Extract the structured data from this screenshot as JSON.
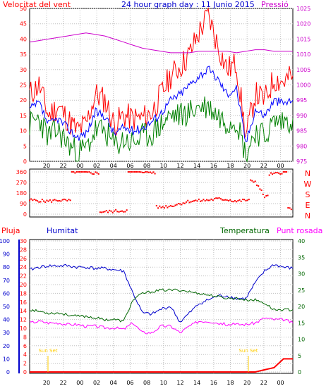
{
  "colors": {
    "wind": "#ff0000",
    "gust": "#008000",
    "pressure_line": "#cc00cc",
    "pressure_axis": "#cc00cc",
    "title": "#0000cc",
    "humidity": "#0000cc",
    "temperature": "#006600",
    "dew": "#ff00ff",
    "rain": "#ff0000",
    "sunset": "#ffcc00",
    "grid": "#c0c0c0",
    "wind_trend": "#0000ff",
    "axis_text": "#000000"
  },
  "chart_data": [
    {
      "type": "line",
      "panel": "wind",
      "title": "24 hour graph day : 11 Junio 2015",
      "left_axis_label": "Velocitat del vent",
      "right_axis_label": "Pressió",
      "ylim": [
        0,
        50
      ],
      "y_ticks": [
        0,
        5,
        10,
        15,
        20,
        25,
        30,
        35,
        40,
        45,
        50
      ],
      "y2lim": [
        975,
        1025
      ],
      "y2_ticks": [
        975,
        980,
        985,
        990,
        995,
        1000,
        1005,
        1010,
        1015,
        1020,
        1025
      ],
      "x_ticks": [
        "20",
        "22",
        "00",
        "02",
        "04",
        "06",
        "08",
        "10",
        "12",
        "14",
        "16",
        "18",
        "20",
        "22",
        "00"
      ],
      "grid": true,
      "x": [
        0,
        1,
        2,
        3,
        4,
        5,
        6,
        7,
        8,
        9,
        10,
        11,
        12,
        13,
        14,
        15,
        16,
        17,
        18,
        19,
        20,
        21,
        22,
        23,
        24,
        25,
        26,
        27,
        28
      ],
      "series": [
        {
          "role": "gust",
          "values": [
            22,
            25,
            15,
            18,
            14,
            10,
            12,
            22,
            20,
            12,
            15,
            14,
            14,
            16,
            22,
            28,
            31,
            35,
            42,
            48,
            38,
            30,
            32,
            8,
            22,
            20,
            27,
            26,
            28
          ]
        },
        {
          "role": "average",
          "values": [
            17,
            19,
            12,
            14,
            11,
            8,
            9,
            16,
            15,
            9,
            11,
            10,
            11,
            13,
            16,
            20,
            22,
            25,
            28,
            30,
            27,
            22,
            24,
            6,
            17,
            15,
            20,
            19,
            20
          ]
        },
        {
          "role": "low",
          "values": [
            12,
            14,
            8,
            10,
            6,
            3,
            4,
            10,
            10,
            5,
            7,
            6,
            8,
            9,
            12,
            15,
            15,
            16,
            18,
            18,
            15,
            13,
            14,
            2,
            10,
            8,
            13,
            13,
            14
          ]
        },
        {
          "role": "pressure",
          "axis": "right",
          "values": [
            1014,
            1014.5,
            1015,
            1015.5,
            1016,
            1016.5,
            1017,
            1016.5,
            1016,
            1015,
            1014,
            1013,
            1012,
            1011.5,
            1011,
            1010.5,
            1010.5,
            1010.5,
            1011,
            1011,
            1011,
            1011,
            1010.5,
            1011,
            1011.5,
            1011.5,
            1011,
            1011,
            1011
          ]
        }
      ]
    },
    {
      "type": "scatter",
      "panel": "wind_direction",
      "ylim": [
        0,
        360
      ],
      "y_ticks": [
        0,
        90,
        180,
        270,
        360
      ],
      "right_labels": [
        "N",
        "W",
        "S",
        "E",
        "N"
      ],
      "x": [
        0,
        1,
        2,
        3,
        4,
        5,
        6,
        7,
        8,
        9,
        10,
        11,
        12,
        13,
        14,
        15,
        16,
        17,
        18,
        19,
        20,
        21,
        22,
        23,
        24,
        25,
        26,
        27,
        28
      ],
      "values": [
        120,
        115,
        110,
        120,
        115,
        360,
        355,
        350,
        20,
        25,
        30,
        360,
        365,
        355,
        60,
        70,
        90,
        110,
        115,
        120,
        130,
        125,
        110,
        120,
        280,
        150,
        340,
        360,
        50
      ]
    },
    {
      "type": "line",
      "panel": "humidity_temp",
      "left_axis_label": "Pluja",
      "second_left_axis_label": "Humitat",
      "right_axis_label": "Temperatura",
      "right2_axis_label": "Punt rosada",
      "ylim_rain": [
        0,
        30
      ],
      "y_ticks_rain": [
        0,
        2,
        4,
        6,
        8,
        10,
        12,
        14,
        16,
        18,
        20,
        22,
        24,
        26,
        28,
        30
      ],
      "ylim_humidity": [
        0,
        100
      ],
      "y_ticks_humidity": [
        0,
        10,
        20,
        30,
        40,
        50,
        60,
        70,
        80,
        90,
        100
      ],
      "ylim_temp": [
        0,
        40
      ],
      "y_ticks_temp": [
        0,
        5,
        10,
        15,
        20,
        25,
        30,
        35,
        40
      ],
      "x_ticks": [
        "20",
        "22",
        "00",
        "02",
        "04",
        "06",
        "08",
        "10",
        "12",
        "14",
        "16",
        "18",
        "20",
        "22",
        "00"
      ],
      "annotations": [
        {
          "text": "Sun Set",
          "x": 0
        },
        {
          "text": "Sun Set",
          "x": 24
        }
      ],
      "x": [
        0,
        1,
        2,
        3,
        4,
        5,
        6,
        7,
        8,
        9,
        10,
        11,
        12,
        13,
        14,
        15,
        16,
        17,
        18,
        19,
        20,
        21,
        22,
        23,
        24,
        25,
        26,
        27,
        28
      ],
      "series": [
        {
          "role": "humidity",
          "axis": "humidity",
          "values": [
            78,
            80,
            81,
            81,
            81,
            80,
            80,
            79,
            79,
            78,
            77,
            60,
            45,
            44,
            48,
            50,
            38,
            45,
            52,
            55,
            58,
            58,
            56,
            56,
            68,
            77,
            82,
            80,
            79
          ]
        },
        {
          "role": "temperature",
          "axis": "temp",
          "values": [
            19,
            18.5,
            18,
            18,
            17.5,
            17,
            17,
            16.5,
            16,
            16,
            15.5,
            22,
            24,
            24.5,
            25,
            25,
            25,
            24.5,
            24,
            23.5,
            23,
            22.5,
            22.5,
            22,
            22,
            21,
            19,
            19,
            19
          ]
        },
        {
          "role": "dew",
          "axis": "temp",
          "values": [
            15,
            15.5,
            15,
            15,
            14.5,
            14.5,
            14,
            14,
            13.5,
            13.5,
            13,
            15,
            12,
            12,
            14,
            14,
            12,
            14,
            15.5,
            15.5,
            15,
            14.5,
            14.5,
            14.5,
            15,
            16.5,
            16,
            16,
            15
          ]
        },
        {
          "role": "rain",
          "axis": "rain",
          "values": [
            0,
            0,
            0,
            0,
            0,
            0,
            0,
            0,
            0,
            0,
            0,
            0,
            0,
            0,
            0,
            0,
            0,
            0,
            0,
            0,
            0,
            0,
            0,
            0,
            0,
            0.5,
            1,
            3,
            3
          ]
        }
      ]
    }
  ]
}
